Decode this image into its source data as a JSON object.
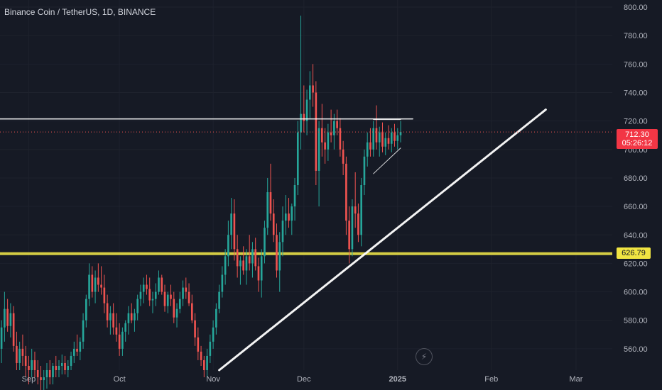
{
  "header": {
    "title": "Binance Coin / TetherUS, 1D, BINANCE"
  },
  "price_label": {
    "price": "712.30",
    "countdown": "05:26:12"
  },
  "level_label": {
    "value": "626.79"
  },
  "icons": {
    "flash": "lightning-icon"
  },
  "colors": {
    "up": "#26a69a",
    "down": "#ef5350",
    "level": "#d4cc44",
    "trendline": "#ffffff",
    "background": "#161a25"
  },
  "chart_data": {
    "type": "candlestick",
    "title": "Binance Coin / TetherUS, 1D, BINANCE",
    "ylim": [
      545,
      805
    ],
    "y_ticks": [
      560,
      580,
      600,
      620,
      640,
      660,
      680,
      700,
      720,
      740,
      760,
      780,
      800
    ],
    "y_tick_labels": [
      "560.00",
      "580.00",
      "600.00",
      "620.00",
      "640.00",
      "660.00",
      "680.00",
      "700.00",
      "720.00",
      "740.00",
      "760.00",
      "780.00",
      "800.00"
    ],
    "x_ticks": [
      "Sep",
      "Oct",
      "Nov",
      "Dec",
      "2025",
      "Feb",
      "Mar"
    ],
    "x_tick_days": [
      0,
      30,
      61,
      91,
      122,
      153,
      181
    ],
    "xlim": [
      -9.5,
      193
    ],
    "horizontal_levels": [
      626.79
    ],
    "dotted_price_line": 712.3,
    "last_price": 712.3,
    "trendlines": [
      {
        "from": [
          -9.5,
          721.5
        ],
        "to": [
          127,
          721.5
        ]
      },
      {
        "from": [
          63,
          545
        ],
        "to": [
          171,
          728
        ]
      },
      {
        "from": [
          114,
          683
        ],
        "to": [
          123,
          701
        ]
      },
      {
        "from": [
          114,
          721
        ],
        "to": [
          123,
          721
        ]
      }
    ],
    "candles": [
      [
        -10,
        562,
        572,
        548,
        560
      ],
      [
        -9,
        560,
        580,
        550,
        575
      ],
      [
        -8,
        575,
        600,
        565,
        588
      ],
      [
        -7,
        588,
        595,
        572,
        576
      ],
      [
        -6,
        576,
        592,
        568,
        585
      ],
      [
        -5,
        585,
        590,
        558,
        562
      ],
      [
        -4,
        562,
        572,
        545,
        550
      ],
      [
        -3,
        550,
        565,
        545,
        560
      ],
      [
        -2,
        560,
        570,
        548,
        555
      ],
      [
        -1,
        555,
        562,
        540,
        548
      ],
      [
        0,
        548,
        555,
        535,
        545
      ],
      [
        1,
        545,
        560,
        540,
        552
      ],
      [
        2,
        552,
        558,
        540,
        545
      ],
      [
        3,
        545,
        552,
        535,
        540
      ],
      [
        4,
        540,
        548,
        530,
        538
      ],
      [
        5,
        538,
        545,
        530,
        540
      ],
      [
        6,
        540,
        550,
        532,
        545
      ],
      [
        7,
        545,
        552,
        535,
        540
      ],
      [
        8,
        540,
        550,
        535,
        548
      ],
      [
        9,
        548,
        555,
        540,
        545
      ],
      [
        10,
        545,
        552,
        540,
        548
      ],
      [
        11,
        548,
        556,
        542,
        550
      ],
      [
        12,
        550,
        555,
        542,
        545
      ],
      [
        13,
        545,
        552,
        540,
        548
      ],
      [
        14,
        548,
        558,
        545,
        555
      ],
      [
        15,
        555,
        565,
        550,
        560
      ],
      [
        16,
        560,
        570,
        555,
        558
      ],
      [
        17,
        558,
        568,
        552,
        565
      ],
      [
        18,
        565,
        585,
        560,
        580
      ],
      [
        19,
        580,
        598,
        575,
        595
      ],
      [
        20,
        595,
        620,
        590,
        612
      ],
      [
        21,
        612,
        618,
        596,
        600
      ],
      [
        22,
        600,
        615,
        592,
        610
      ],
      [
        23,
        610,
        620,
        600,
        605
      ],
      [
        24,
        605,
        618,
        598,
        603
      ],
      [
        25,
        603,
        612,
        585,
        592
      ],
      [
        26,
        592,
        598,
        575,
        580
      ],
      [
        27,
        580,
        590,
        570,
        585
      ],
      [
        28,
        585,
        592,
        570,
        575
      ],
      [
        29,
        575,
        585,
        565,
        570
      ],
      [
        30,
        570,
        578,
        555,
        560
      ],
      [
        31,
        560,
        575,
        555,
        572
      ],
      [
        32,
        572,
        580,
        565,
        578
      ],
      [
        33,
        578,
        590,
        570,
        585
      ],
      [
        34,
        585,
        592,
        578,
        580
      ],
      [
        35,
        580,
        588,
        572,
        585
      ],
      [
        36,
        585,
        598,
        580,
        595
      ],
      [
        37,
        595,
        605,
        590,
        600
      ],
      [
        38,
        600,
        610,
        592,
        605
      ],
      [
        39,
        605,
        612,
        598,
        602
      ],
      [
        40,
        602,
        610,
        590,
        594
      ],
      [
        41,
        594,
        600,
        585,
        595
      ],
      [
        42,
        595,
        606,
        590,
        600
      ],
      [
        43,
        600,
        615,
        598,
        610
      ],
      [
        44,
        610,
        612,
        598,
        600
      ],
      [
        45,
        600,
        605,
        586,
        590
      ],
      [
        46,
        590,
        600,
        585,
        598
      ],
      [
        47,
        598,
        605,
        590,
        595
      ],
      [
        48,
        595,
        600,
        578,
        582
      ],
      [
        49,
        582,
        592,
        575,
        588
      ],
      [
        50,
        588,
        600,
        585,
        595
      ],
      [
        51,
        595,
        608,
        590,
        603
      ],
      [
        52,
        603,
        610,
        595,
        600
      ],
      [
        53,
        600,
        606,
        590,
        592
      ],
      [
        54,
        592,
        598,
        578,
        580
      ],
      [
        55,
        580,
        585,
        562,
        568
      ],
      [
        56,
        568,
        575,
        552,
        558
      ],
      [
        57,
        558,
        562,
        548,
        552
      ],
      [
        58,
        552,
        555,
        540,
        545
      ],
      [
        59,
        545,
        560,
        540,
        555
      ],
      [
        60,
        555,
        570,
        550,
        565
      ],
      [
        61,
        565,
        580,
        560,
        575
      ],
      [
        62,
        575,
        592,
        570,
        588
      ],
      [
        63,
        588,
        605,
        585,
        600
      ],
      [
        64,
        600,
        618,
        596,
        612
      ],
      [
        65,
        612,
        630,
        605,
        625
      ],
      [
        66,
        625,
        650,
        618,
        640
      ],
      [
        67,
        640,
        666,
        630,
        655
      ],
      [
        68,
        655,
        665,
        622,
        630
      ],
      [
        69,
        630,
        640,
        610,
        618
      ],
      [
        70,
        618,
        625,
        605,
        622
      ],
      [
        71,
        622,
        632,
        612,
        615
      ],
      [
        72,
        615,
        630,
        605,
        625
      ],
      [
        73,
        625,
        640,
        615,
        620
      ],
      [
        74,
        620,
        635,
        610,
        630
      ],
      [
        75,
        630,
        638,
        615,
        618
      ],
      [
        76,
        618,
        624,
        600,
        608
      ],
      [
        77,
        608,
        630,
        596,
        625
      ],
      [
        78,
        625,
        650,
        620,
        645
      ],
      [
        79,
        645,
        680,
        640,
        670
      ],
      [
        80,
        670,
        690,
        650,
        655
      ],
      [
        81,
        655,
        665,
        635,
        640
      ],
      [
        82,
        640,
        648,
        610,
        615
      ],
      [
        83,
        615,
        642,
        600,
        635
      ],
      [
        84,
        635,
        660,
        625,
        650
      ],
      [
        85,
        650,
        668,
        640,
        655
      ],
      [
        86,
        655,
        666,
        645,
        650
      ],
      [
        87,
        650,
        662,
        640,
        660
      ],
      [
        88,
        660,
        680,
        650,
        675
      ],
      [
        89,
        675,
        720,
        668,
        712
      ],
      [
        90,
        712,
        794,
        700,
        725
      ],
      [
        91,
        725,
        745,
        712,
        720
      ],
      [
        92,
        720,
        742,
        710,
        735
      ],
      [
        93,
        735,
        755,
        722,
        745
      ],
      [
        94,
        745,
        760,
        730,
        740
      ],
      [
        95,
        740,
        748,
        675,
        685
      ],
      [
        96,
        685,
        720,
        660,
        715
      ],
      [
        97,
        715,
        732,
        695,
        705
      ],
      [
        98,
        705,
        715,
        690,
        700
      ],
      [
        99,
        700,
        718,
        692,
        712
      ],
      [
        100,
        712,
        728,
        705,
        710
      ],
      [
        101,
        710,
        725,
        700,
        720
      ],
      [
        102,
        720,
        728,
        710,
        715
      ],
      [
        103,
        715,
        722,
        695,
        700
      ],
      [
        104,
        700,
        706,
        682,
        690
      ],
      [
        105,
        690,
        695,
        640,
        650
      ],
      [
        106,
        650,
        660,
        620,
        630
      ],
      [
        107,
        630,
        665,
        625,
        660
      ],
      [
        108,
        660,
        684,
        645,
        655
      ],
      [
        109,
        655,
        662,
        635,
        640
      ],
      [
        110,
        640,
        680,
        632,
        675
      ],
      [
        111,
        675,
        700,
        668,
        695
      ],
      [
        112,
        695,
        712,
        688,
        705
      ],
      [
        113,
        705,
        715,
        695,
        700
      ],
      [
        114,
        700,
        720,
        695,
        715
      ],
      [
        115,
        715,
        731,
        700,
        705
      ],
      [
        116,
        705,
        716,
        695,
        712
      ],
      [
        117,
        712,
        719,
        698,
        702
      ],
      [
        118,
        702,
        712,
        696,
        708
      ],
      [
        119,
        708,
        717,
        700,
        704
      ],
      [
        120,
        704,
        715,
        698,
        712
      ],
      [
        121,
        712,
        718,
        702,
        706
      ],
      [
        122,
        706,
        715,
        700,
        710
      ],
      [
        123,
        710,
        720,
        705,
        712.3
      ]
    ]
  }
}
